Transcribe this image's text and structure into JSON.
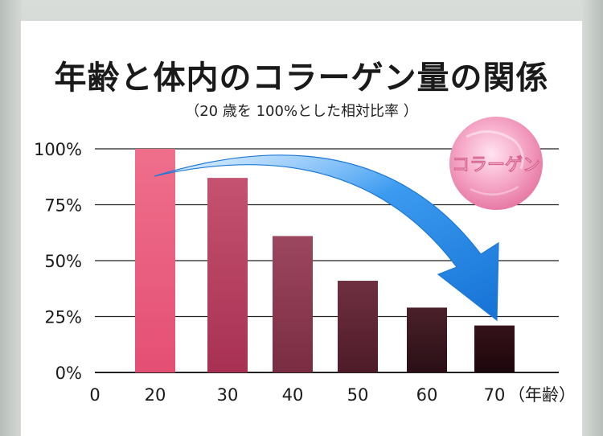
{
  "title": "年齢と体内のコラーゲン量の関係",
  "subtitle": "（20 歳を 100%とした相対比率 ）",
  "badge_label": "コラーゲン",
  "colors": {
    "bar_top": "#ec6a86",
    "bar_bottom": "#2a0c12",
    "arrow": "#2e8fe6",
    "badge": "#f3a2c3"
  },
  "chart_data": {
    "type": "bar",
    "categories": [
      "20",
      "30",
      "40",
      "50",
      "60",
      "70"
    ],
    "values": [
      100,
      87,
      61,
      41,
      29,
      21
    ],
    "ylim": [
      0,
      100
    ],
    "y_ticks": [
      0,
      25,
      50,
      75,
      100
    ],
    "y_tick_labels": [
      "0%",
      "25%",
      "50%",
      "75%",
      "100%"
    ],
    "x_origin_label": "0",
    "x_unit_label": "（年齢）",
    "grid": true,
    "annotations": [
      "下降矢印"
    ]
  }
}
